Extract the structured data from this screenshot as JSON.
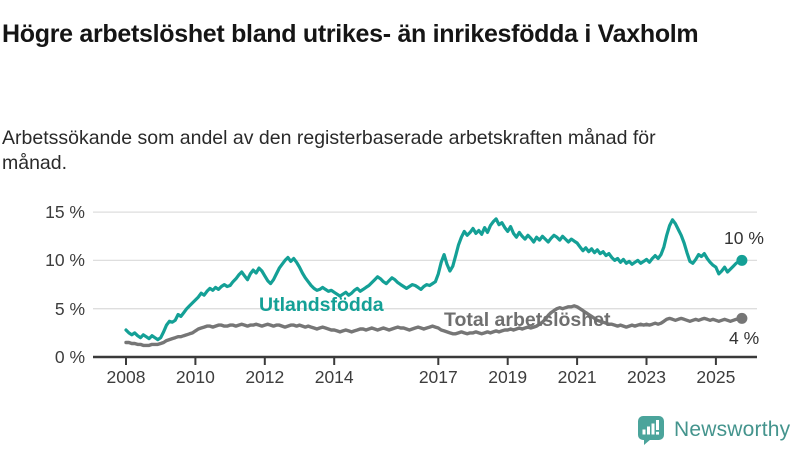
{
  "header": {
    "title": "Högre arbetslöshet bland utrikes- än inrikesfödda i Vaxholm",
    "subtitle": "Arbetssökande som andel av den registerbaserade arbetskraften månad för månad."
  },
  "footer": {
    "brand": "Newsworthy"
  },
  "chart_data": {
    "type": "line",
    "unit": "%",
    "x_unit": "month",
    "x_start": "2008-01",
    "x_end": "2025-10",
    "ylim": [
      0,
      15
    ],
    "grid": "horizontal",
    "legend_position": "inline-labels",
    "yticks": [
      {
        "value": 0,
        "label": "0 %"
      },
      {
        "value": 5,
        "label": "5 %"
      },
      {
        "value": 10,
        "label": "10 %"
      },
      {
        "value": 15,
        "label": "15 %"
      }
    ],
    "xticks": [
      {
        "year": 2008,
        "label": "2008"
      },
      {
        "year": 2010,
        "label": "2010"
      },
      {
        "year": 2012,
        "label": "2012"
      },
      {
        "year": 2014,
        "label": "2014"
      },
      {
        "year": 2017,
        "label": "2017"
      },
      {
        "year": 2019,
        "label": "2019"
      },
      {
        "year": 2021,
        "label": "2021"
      },
      {
        "year": 2023,
        "label": "2023"
      },
      {
        "year": 2025,
        "label": "2025"
      }
    ],
    "series": [
      {
        "name": "Utlandsfödda",
        "color": "#14a096",
        "end_label": "10 %",
        "end_value": 10,
        "values": [
          2.8,
          2.5,
          2.3,
          2.5,
          2.2,
          2.0,
          2.3,
          2.1,
          1.9,
          2.2,
          2.0,
          1.8,
          2.0,
          2.6,
          3.3,
          3.7,
          3.6,
          3.8,
          4.4,
          4.2,
          4.6,
          5.0,
          5.3,
          5.6,
          5.9,
          6.2,
          6.6,
          6.4,
          6.8,
          7.1,
          6.9,
          7.2,
          7.0,
          7.3,
          7.5,
          7.3,
          7.4,
          7.8,
          8.1,
          8.5,
          8.8,
          8.4,
          8.0,
          8.6,
          9.0,
          8.7,
          9.2,
          8.9,
          8.4,
          7.9,
          7.6,
          8.0,
          8.6,
          9.2,
          9.6,
          10.0,
          10.3,
          9.9,
          10.2,
          9.8,
          9.3,
          8.7,
          8.2,
          7.8,
          7.4,
          7.1,
          6.9,
          7.0,
          7.2,
          7.0,
          6.8,
          6.9,
          6.7,
          6.5,
          6.3,
          6.5,
          6.7,
          6.4,
          6.6,
          6.9,
          7.1,
          6.8,
          7.0,
          7.2,
          7.4,
          7.7,
          8.0,
          8.3,
          8.1,
          7.8,
          7.6,
          7.9,
          8.2,
          8.0,
          7.7,
          7.5,
          7.3,
          7.1,
          7.3,
          7.5,
          7.4,
          7.2,
          7.0,
          7.3,
          7.5,
          7.4,
          7.6,
          7.8,
          8.6,
          9.8,
          10.6,
          9.6,
          8.9,
          9.4,
          10.5,
          11.6,
          12.4,
          13.0,
          12.6,
          12.9,
          13.3,
          12.8,
          13.1,
          12.7,
          13.4,
          12.9,
          13.6,
          14.0,
          14.3,
          13.7,
          13.9,
          13.4,
          13.0,
          13.5,
          12.8,
          12.4,
          12.9,
          12.5,
          12.2,
          12.6,
          12.3,
          11.9,
          12.4,
          12.1,
          12.5,
          12.2,
          11.9,
          12.3,
          12.6,
          12.4,
          12.1,
          12.5,
          12.2,
          11.9,
          12.2,
          12.0,
          11.8,
          11.4,
          11.0,
          11.3,
          10.9,
          11.2,
          10.8,
          11.1,
          10.7,
          10.9,
          10.5,
          10.7,
          10.3,
          10.0,
          10.2,
          9.8,
          10.1,
          9.7,
          9.9,
          9.6,
          9.8,
          10.0,
          9.7,
          9.9,
          10.1,
          9.8,
          10.2,
          10.5,
          10.2,
          10.6,
          11.4,
          12.6,
          13.6,
          14.2,
          13.8,
          13.2,
          12.6,
          11.8,
          10.8,
          9.9,
          9.7,
          10.1,
          10.6,
          10.4,
          10.7,
          10.2,
          9.8,
          9.5,
          9.3,
          8.6,
          8.9,
          9.3,
          8.8,
          9.1,
          9.4,
          9.7,
          9.9,
          10.0
        ]
      },
      {
        "name": "Total arbetslöshet",
        "color": "#767676",
        "end_label": "4 %",
        "end_value": 4,
        "values": [
          1.5,
          1.5,
          1.4,
          1.4,
          1.3,
          1.3,
          1.2,
          1.2,
          1.2,
          1.3,
          1.3,
          1.3,
          1.4,
          1.5,
          1.7,
          1.8,
          1.9,
          2.0,
          2.1,
          2.1,
          2.2,
          2.3,
          2.4,
          2.5,
          2.7,
          2.9,
          3.0,
          3.1,
          3.2,
          3.2,
          3.1,
          3.2,
          3.3,
          3.3,
          3.2,
          3.2,
          3.3,
          3.3,
          3.2,
          3.3,
          3.4,
          3.3,
          3.2,
          3.3,
          3.3,
          3.4,
          3.3,
          3.2,
          3.3,
          3.4,
          3.3,
          3.2,
          3.3,
          3.3,
          3.2,
          3.1,
          3.2,
          3.3,
          3.3,
          3.2,
          3.3,
          3.2,
          3.1,
          3.2,
          3.1,
          3.0,
          2.9,
          3.0,
          3.1,
          3.0,
          2.9,
          2.8,
          2.8,
          2.7,
          2.6,
          2.7,
          2.8,
          2.7,
          2.6,
          2.7,
          2.8,
          2.9,
          2.9,
          2.8,
          2.9,
          3.0,
          2.9,
          2.8,
          2.9,
          3.0,
          2.9,
          2.8,
          2.9,
          3.0,
          3.1,
          3.0,
          3.0,
          2.9,
          2.8,
          2.9,
          3.0,
          3.1,
          3.0,
          2.9,
          3.0,
          3.1,
          3.2,
          3.1,
          3.0,
          2.8,
          2.7,
          2.6,
          2.5,
          2.4,
          2.4,
          2.5,
          2.6,
          2.5,
          2.4,
          2.5,
          2.5,
          2.6,
          2.5,
          2.4,
          2.5,
          2.6,
          2.5,
          2.6,
          2.7,
          2.6,
          2.7,
          2.8,
          2.8,
          2.9,
          2.8,
          2.9,
          3.0,
          2.9,
          3.0,
          3.1,
          3.0,
          3.1,
          3.2,
          3.4,
          3.6,
          3.9,
          4.3,
          4.6,
          4.8,
          5.0,
          5.1,
          5.0,
          5.1,
          5.2,
          5.2,
          5.3,
          5.2,
          5.0,
          4.8,
          4.6,
          4.4,
          4.2,
          4.0,
          3.8,
          3.7,
          3.6,
          3.5,
          3.4,
          3.4,
          3.3,
          3.2,
          3.3,
          3.2,
          3.1,
          3.2,
          3.3,
          3.2,
          3.3,
          3.4,
          3.3,
          3.4,
          3.3,
          3.4,
          3.5,
          3.4,
          3.5,
          3.7,
          3.9,
          4.0,
          3.9,
          3.8,
          3.9,
          4.0,
          3.9,
          3.8,
          3.7,
          3.8,
          3.9,
          3.8,
          3.9,
          4.0,
          3.9,
          3.8,
          3.9,
          3.8,
          3.7,
          3.8,
          3.9,
          3.8,
          3.7,
          3.8,
          3.9,
          3.9,
          4.0
        ]
      }
    ]
  }
}
